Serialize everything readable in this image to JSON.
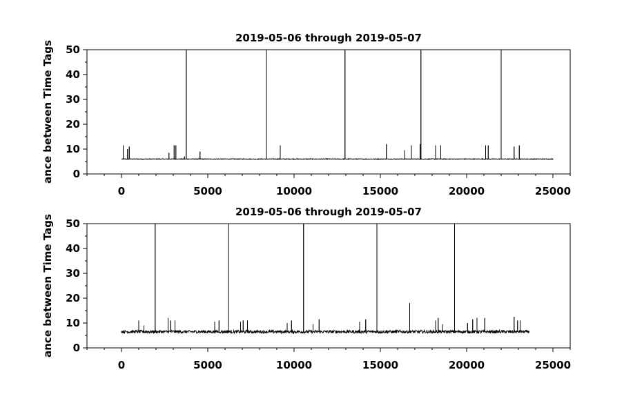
{
  "chart_data": [
    {
      "type": "line",
      "title": "2019-05-06 through 2019-05-07",
      "xlabel": "",
      "ylabel": "ance between Time Tags",
      "xlim": [
        -2000,
        26000
      ],
      "ylim": [
        0,
        50
      ],
      "xticks": [
        0,
        5000,
        10000,
        15000,
        20000,
        25000
      ],
      "yticks": [
        0,
        10,
        20,
        30,
        40,
        50
      ],
      "grid": false,
      "x_extent": [
        0,
        25000
      ],
      "baseline": 6,
      "noise_amplitude": 0.3,
      "spikes": [
        {
          "x": 100,
          "y": 11.5
        },
        {
          "x": 350,
          "y": 10
        },
        {
          "x": 450,
          "y": 11
        },
        {
          "x": 2750,
          "y": 8.5
        },
        {
          "x": 3050,
          "y": 11.5
        },
        {
          "x": 3150,
          "y": 11.5
        },
        {
          "x": 3650,
          "y": 7
        },
        {
          "x": 3750,
          "y": 50
        },
        {
          "x": 4550,
          "y": 9
        },
        {
          "x": 8400,
          "y": 50
        },
        {
          "x": 9200,
          "y": 11.5
        },
        {
          "x": 12950,
          "y": 50
        },
        {
          "x": 15350,
          "y": 12
        },
        {
          "x": 16400,
          "y": 9.5
        },
        {
          "x": 16800,
          "y": 11.5
        },
        {
          "x": 17300,
          "y": 12
        },
        {
          "x": 17350,
          "y": 50
        },
        {
          "x": 18200,
          "y": 11.5
        },
        {
          "x": 18500,
          "y": 11.5
        },
        {
          "x": 21100,
          "y": 11.5
        },
        {
          "x": 21250,
          "y": 11.5
        },
        {
          "x": 22000,
          "y": 50
        },
        {
          "x": 22750,
          "y": 11
        },
        {
          "x": 23050,
          "y": 11.5
        }
      ]
    },
    {
      "type": "line",
      "title": "2019-05-06 through 2019-05-07",
      "xlabel": "",
      "ylabel": "ance between Time Tags",
      "xlim": [
        -2000,
        26000
      ],
      "ylim": [
        0,
        50
      ],
      "xticks": [
        0,
        5000,
        10000,
        15000,
        20000,
        25000
      ],
      "yticks": [
        0,
        10,
        20,
        30,
        40,
        50
      ],
      "grid": false,
      "x_extent": [
        0,
        23600
      ],
      "baseline": 6.5,
      "noise_amplitude": 1.2,
      "spikes": [
        {
          "x": 1000,
          "y": 11
        },
        {
          "x": 1300,
          "y": 9
        },
        {
          "x": 1950,
          "y": 50
        },
        {
          "x": 2700,
          "y": 12
        },
        {
          "x": 2850,
          "y": 11
        },
        {
          "x": 3100,
          "y": 11
        },
        {
          "x": 5400,
          "y": 10.5
        },
        {
          "x": 5650,
          "y": 11
        },
        {
          "x": 6200,
          "y": 50
        },
        {
          "x": 6900,
          "y": 10.5
        },
        {
          "x": 7050,
          "y": 11
        },
        {
          "x": 7300,
          "y": 11
        },
        {
          "x": 9600,
          "y": 10
        },
        {
          "x": 9850,
          "y": 11
        },
        {
          "x": 10550,
          "y": 50
        },
        {
          "x": 11100,
          "y": 9.5
        },
        {
          "x": 11450,
          "y": 11.5
        },
        {
          "x": 13800,
          "y": 10.5
        },
        {
          "x": 14150,
          "y": 11.5
        },
        {
          "x": 14800,
          "y": 50
        },
        {
          "x": 16700,
          "y": 18
        },
        {
          "x": 18200,
          "y": 11
        },
        {
          "x": 18350,
          "y": 12
        },
        {
          "x": 18600,
          "y": 9.5
        },
        {
          "x": 19300,
          "y": 50
        },
        {
          "x": 20050,
          "y": 10
        },
        {
          "x": 20350,
          "y": 11.5
        },
        {
          "x": 20600,
          "y": 12
        },
        {
          "x": 21050,
          "y": 12
        },
        {
          "x": 22750,
          "y": 12.5
        },
        {
          "x": 22950,
          "y": 11
        },
        {
          "x": 23100,
          "y": 11
        }
      ]
    }
  ]
}
